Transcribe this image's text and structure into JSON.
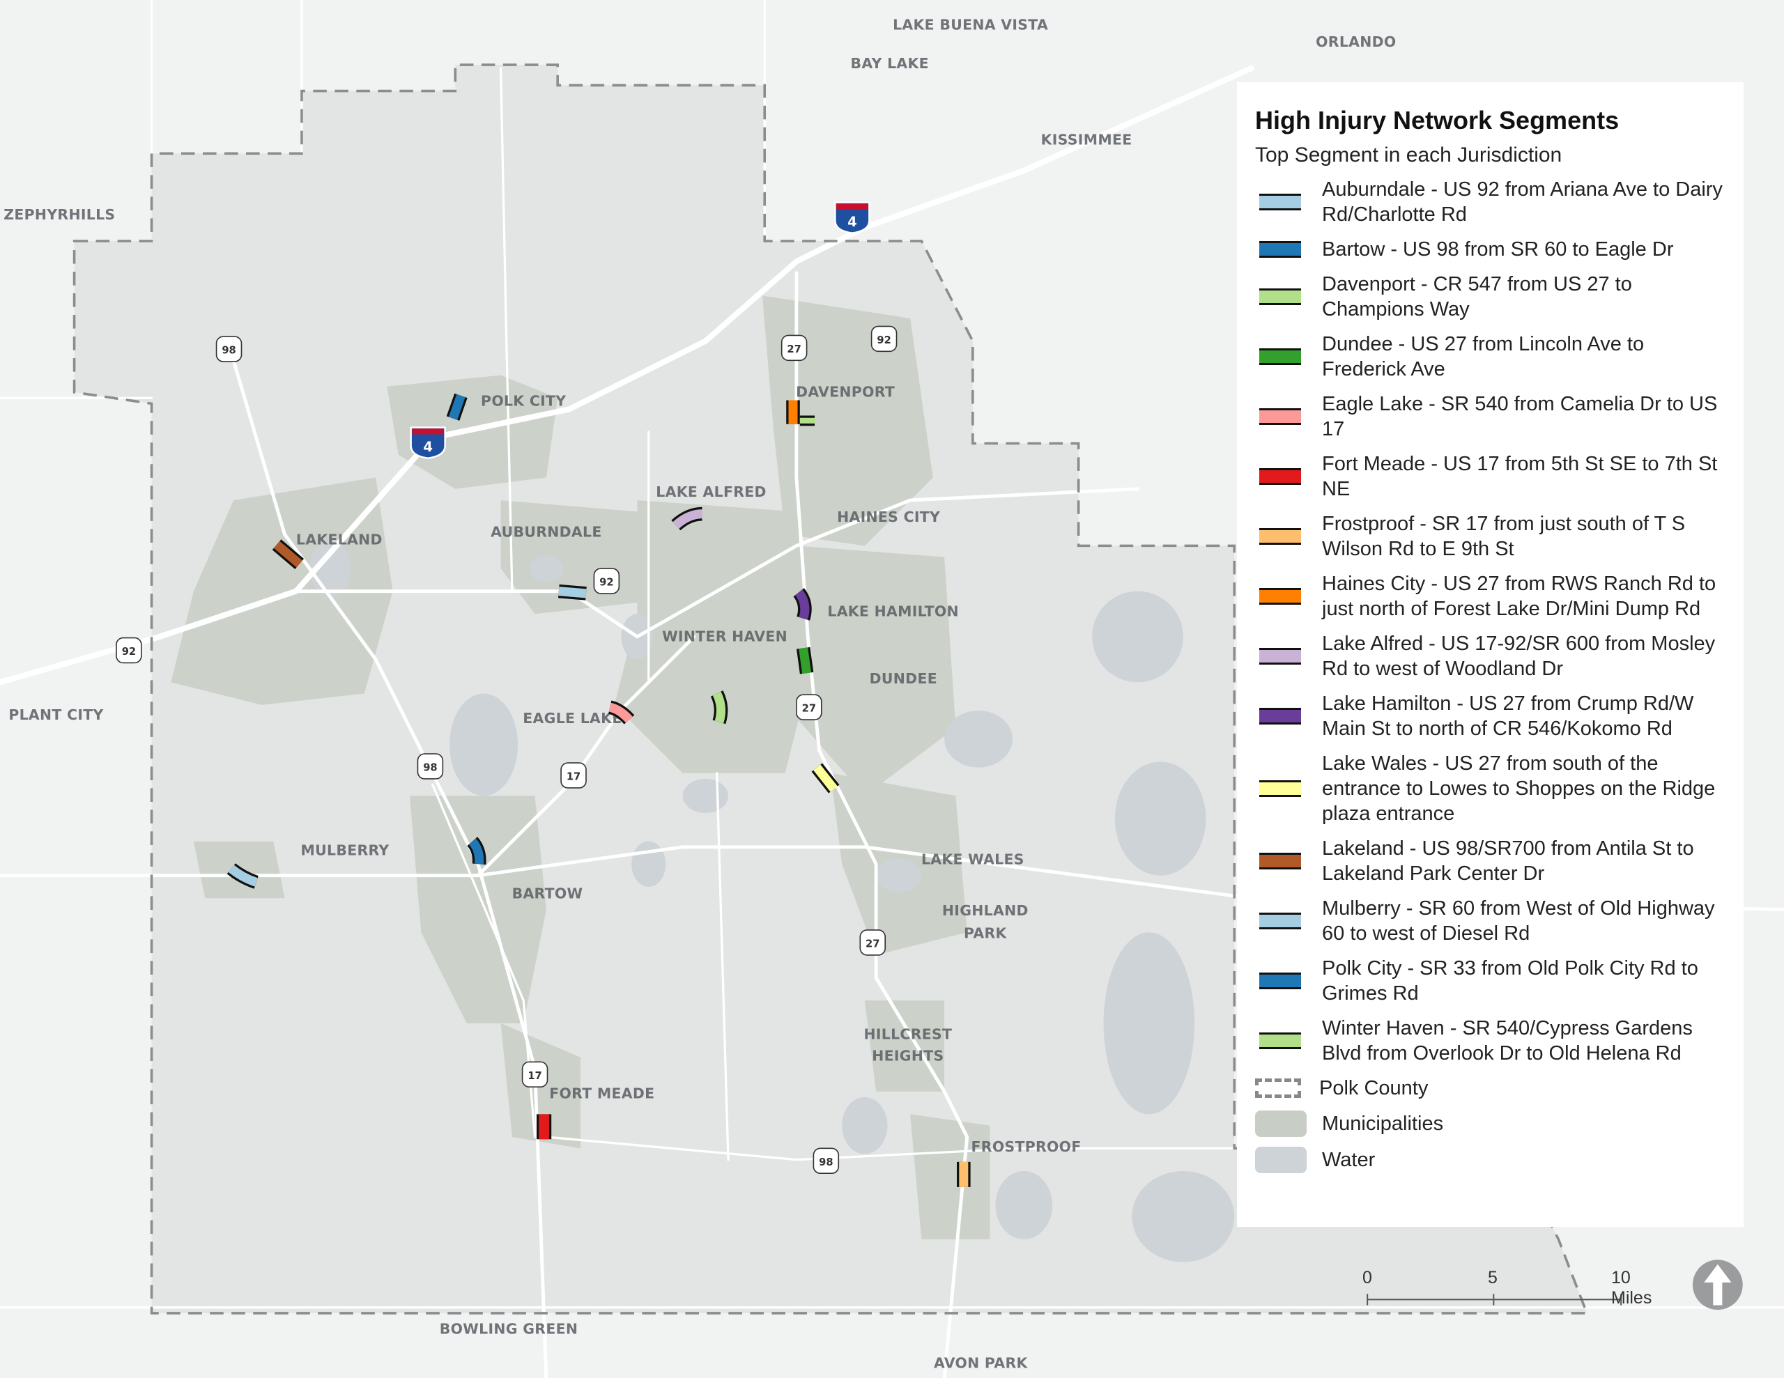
{
  "legend": {
    "title": "High Injury Network Segments",
    "subtitle": "Top Segment in each Jurisdiction",
    "segments": [
      {
        "label": "Auburndale - US 92 from Ariana Ave to Dairy Rd/Charlotte Rd",
        "color": "#a6cee3"
      },
      {
        "label": "Bartow - US 98 from SR 60 to Eagle Dr",
        "color": "#1f78b4"
      },
      {
        "label": "Davenport - CR 547 from US 27 to Champions Way",
        "color": "#b2df8a"
      },
      {
        "label": "Dundee - US 27 from Lincoln Ave to Frederick Ave",
        "color": "#33a02c"
      },
      {
        "label": "Eagle Lake - SR 540 from Camelia Dr to US 17",
        "color": "#fb9a99"
      },
      {
        "label": "Fort Meade - US 17 from 5th St SE to 7th St NE",
        "color": "#e31a1c"
      },
      {
        "label": "Frostproof - SR 17 from just south of T S Wilson Rd to E 9th St",
        "color": "#fdbf6f"
      },
      {
        "label": "Haines City - US 27 from RWS Ranch Rd to just north of Forest Lake Dr/Mini Dump Rd",
        "color": "#ff7f00"
      },
      {
        "label": "Lake Alfred - US 17-92/SR 600 from Mosley Rd to west of Woodland Dr",
        "color": "#cab2d6"
      },
      {
        "label": "Lake Hamilton - US 27 from Crump Rd/W Main St to north of CR 546/Kokomo Rd",
        "color": "#6a3d9a"
      },
      {
        "label": "Lake Wales - US 27 from south of the entrance to Lowes to Shoppes on the Ridge plaza entrance",
        "color": "#ffff99"
      },
      {
        "label": "Lakeland - US 98/SR700 from Antila St to Lakeland Park Center Dr",
        "color": "#b15928"
      },
      {
        "label": "Mulberry - SR 60 from West of Old Highway 60 to west of Diesel Rd",
        "color": "#a6cee3"
      },
      {
        "label": "Polk City - SR 33 from Old Polk City Rd to Grimes Rd",
        "color": "#1f78b4"
      },
      {
        "label": "Winter Haven - SR 540/Cypress Gardens Blvd from Overlook Dr to Old Helena Rd",
        "color": "#b2df8a"
      }
    ],
    "county_label": "Polk County",
    "municipalities_label": "Municipalities",
    "municipalities_color": "#c8cec6",
    "water_label": "Water",
    "water_color": "#cdd3d6"
  },
  "places": {
    "lake_buena_vista": "LAKE BUENA VISTA",
    "orlando": "ORLANDO",
    "bay_lake": "BAY LAKE",
    "kissimmee": "KISSIMMEE",
    "zephyrhills": "ZEPHYRHILLS",
    "polk_city": "POLK CITY",
    "davenport": "DAVENPORT",
    "lake_alfred": "LAKE ALFRED",
    "haines_city": "HAINES CITY",
    "auburndale": "AUBURNDALE",
    "lakeland": "LAKELAND",
    "lake_hamilton": "LAKE HAMILTON",
    "winter_haven": "WINTER HAVEN",
    "dundee": "DUNDEE",
    "plant_city": "PLANT CITY",
    "eagle_lake": "EAGLE LAKE",
    "mulberry": "MULBERRY",
    "lake_wales": "LAKE WALES",
    "bartow": "BARTOW",
    "highland_1": "HIGHLAND",
    "highland_2": "PARK",
    "hillcrest_1": "HILLCREST",
    "hillcrest_2": "HEIGHTS",
    "fort_meade": "FORT MEADE",
    "frostproof": "FROSTPROOF",
    "bowling_green": "BOWLING GREEN",
    "avon_park": "AVON PARK"
  },
  "shields": {
    "us98": "98",
    "us27": "27",
    "us92": "92",
    "us17": "17",
    "i4": "4",
    "i4_prefix": "I"
  },
  "scale_bar": {
    "ticks": [
      "0",
      "5",
      "10 Miles"
    ]
  },
  "north_arrow": "north-arrow-icon"
}
